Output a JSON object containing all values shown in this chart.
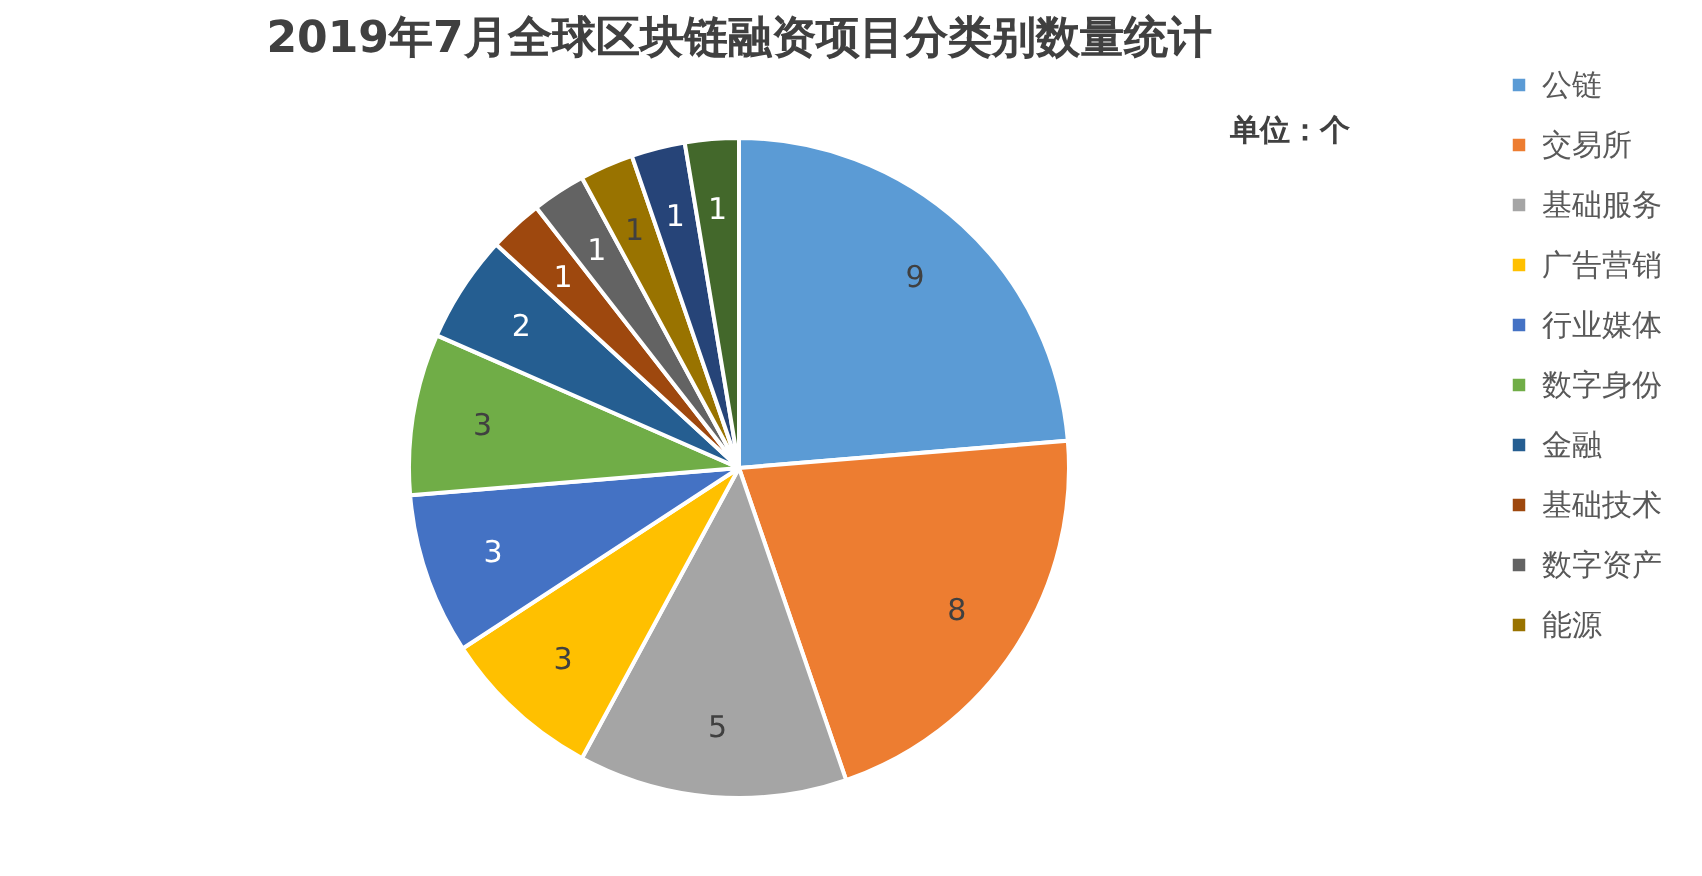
{
  "chart_data": {
    "type": "pie",
    "title": "2019年7月全球区块链融资项目分类别数量统计",
    "annotations": [
      "单位：个"
    ],
    "categories": [
      "公链",
      "交易所",
      "基础服务",
      "广告营销",
      "行业媒体",
      "数字身份",
      "金融",
      "基础技术",
      "数字资产",
      "能源",
      null,
      null
    ],
    "values": [
      9,
      8,
      5,
      3,
      3,
      3,
      2,
      1,
      1,
      1,
      1,
      1
    ],
    "colors": [
      "#5b9bd5",
      "#ed7d31",
      "#a5a5a5",
      "#ffc000",
      "#4472c4",
      "#70ad47",
      "#255e91",
      "#9e480e",
      "#636363",
      "#997300",
      "#264478",
      "#43682b"
    ],
    "data_labels": true,
    "legend": "right"
  }
}
